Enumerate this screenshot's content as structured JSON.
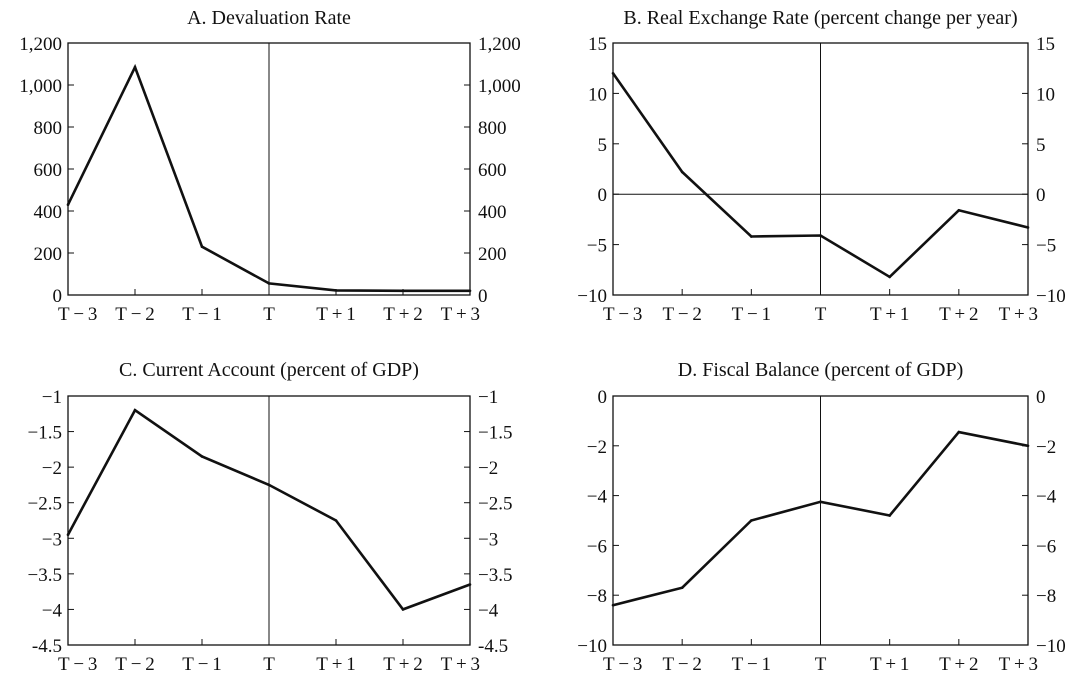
{
  "colors": {
    "line": "#111111",
    "frame": "#111111",
    "background": "#ffffff"
  },
  "chart_data": [
    {
      "type": "line",
      "title": "A. Devaluation Rate",
      "xlabel": "",
      "ylabel": "",
      "categories": [
        "T − 3",
        "T − 2",
        "T − 1",
        "T",
        "T + 1",
        "T + 2",
        "T + 3"
      ],
      "values": [
        430,
        1085,
        230,
        55,
        22,
        20,
        20
      ],
      "ylim": [
        0,
        1200
      ],
      "yticks": [
        0,
        200,
        400,
        600,
        800,
        1000,
        1200
      ],
      "ytick_labels": [
        "0",
        "200",
        "400",
        "600",
        "800",
        "1,000",
        "1,200"
      ],
      "mirror_right_axis": true,
      "vline_at": "T",
      "hline_at": null,
      "grid": false
    },
    {
      "type": "line",
      "title": "B. Real Exchange Rate (percent change per year)",
      "xlabel": "",
      "ylabel": "",
      "categories": [
        "T − 3",
        "T − 2",
        "T − 1",
        "T",
        "T + 1",
        "T + 2",
        "T + 3"
      ],
      "values": [
        12,
        2.2,
        -4.2,
        -4.1,
        -8.2,
        -1.6,
        -3.3
      ],
      "ylim": [
        -10,
        15
      ],
      "yticks": [
        -10,
        -5,
        0,
        5,
        10,
        15
      ],
      "ytick_labels": [
        "−10",
        "−5",
        "0",
        "5",
        "10",
        "15"
      ],
      "mirror_right_axis": true,
      "vline_at": "T",
      "hline_at": 0,
      "grid": false
    },
    {
      "type": "line",
      "title": "C. Current Account (percent of GDP)",
      "xlabel": "",
      "ylabel": "",
      "categories": [
        "T − 3",
        "T − 2",
        "T − 1",
        "T",
        "T + 1",
        "T + 2",
        "T + 3"
      ],
      "values": [
        -2.95,
        -1.2,
        -1.85,
        -2.25,
        -2.75,
        -4.0,
        -3.65
      ],
      "ylim": [
        -4.5,
        -1
      ],
      "yticks": [
        -4.5,
        -4,
        -3.5,
        -3,
        -2.5,
        -2,
        -1.5,
        -1
      ],
      "ytick_labels": [
        "-4.5",
        "−4",
        "−3.5",
        "−3",
        "−2.5",
        "−2",
        "−1.5",
        "−1"
      ],
      "mirror_right_axis": true,
      "vline_at": "T",
      "hline_at": null,
      "grid": false
    },
    {
      "type": "line",
      "title": "D. Fiscal Balance (percent of GDP)",
      "xlabel": "",
      "ylabel": "",
      "categories": [
        "T − 3",
        "T − 2",
        "T − 1",
        "T",
        "T + 1",
        "T + 2",
        "T + 3"
      ],
      "values": [
        -8.4,
        -7.7,
        -5.0,
        -4.25,
        -4.8,
        -1.45,
        -2.0
      ],
      "ylim": [
        -10,
        0
      ],
      "yticks": [
        -10,
        -8,
        -6,
        -4,
        -2,
        0
      ],
      "ytick_labels": [
        "−10",
        "−8",
        "−6",
        "−4",
        "−2",
        "0"
      ],
      "mirror_right_axis": true,
      "vline_at": "T",
      "hline_at": null,
      "grid": false
    }
  ]
}
